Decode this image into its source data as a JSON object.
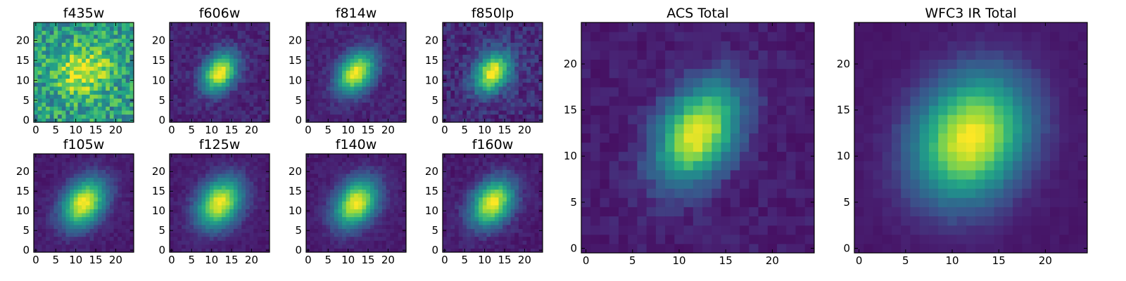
{
  "figure": {
    "background": "#ffffff"
  },
  "colormap": {
    "name": "viridis"
  },
  "chart_data": [
    {
      "type": "heatmap",
      "title": "f435w",
      "grid": [
        25,
        25
      ],
      "xlim": [
        0,
        24
      ],
      "ylim": [
        0,
        24
      ],
      "x_ticks": [
        0,
        5,
        10,
        15,
        20
      ],
      "y_ticks": [
        0,
        5,
        10,
        15,
        20
      ],
      "source": {
        "center": [
          12,
          12.5
        ],
        "peak_value": 1.0,
        "sigma": 4.5,
        "elongation_angle_deg": 30,
        "axis_ratio": 0.9,
        "background": 0.55,
        "noise": 0.22
      }
    },
    {
      "type": "heatmap",
      "title": "f606w",
      "grid": [
        25,
        25
      ],
      "xlim": [
        0,
        24
      ],
      "ylim": [
        0,
        24
      ],
      "x_ticks": [
        0,
        5,
        10,
        15,
        20
      ],
      "y_ticks": [
        0,
        5,
        10,
        15,
        20
      ],
      "source": {
        "center": [
          12,
          12
        ],
        "peak_value": 1.0,
        "sigma": 3.6,
        "elongation_angle_deg": 55,
        "axis_ratio": 0.72,
        "background": 0.12,
        "noise": 0.06
      }
    },
    {
      "type": "heatmap",
      "title": "f814w",
      "grid": [
        25,
        25
      ],
      "xlim": [
        0,
        24
      ],
      "ylim": [
        0,
        24
      ],
      "x_ticks": [
        0,
        5,
        10,
        15,
        20
      ],
      "y_ticks": [
        0,
        5,
        10,
        15,
        20
      ],
      "source": {
        "center": [
          12,
          12
        ],
        "peak_value": 1.0,
        "sigma": 3.9,
        "elongation_angle_deg": 55,
        "axis_ratio": 0.7,
        "background": 0.12,
        "noise": 0.05
      }
    },
    {
      "type": "heatmap",
      "title": "f850lp",
      "grid": [
        25,
        25
      ],
      "xlim": [
        0,
        24
      ],
      "ylim": [
        0,
        24
      ],
      "x_ticks": [
        0,
        5,
        10,
        15,
        20
      ],
      "y_ticks": [
        0,
        5,
        10,
        15,
        20
      ],
      "source": {
        "center": [
          12,
          12
        ],
        "peak_value": 1.0,
        "sigma": 3.8,
        "elongation_angle_deg": 55,
        "axis_ratio": 0.72,
        "background": 0.14,
        "noise": 0.09
      }
    },
    {
      "type": "heatmap",
      "title": "f105w",
      "grid": [
        25,
        25
      ],
      "xlim": [
        0,
        24
      ],
      "ylim": [
        0,
        24
      ],
      "x_ticks": [
        0,
        5,
        10,
        15,
        20
      ],
      "y_ticks": [
        0,
        5,
        10,
        15,
        20
      ],
      "source": {
        "center": [
          12,
          12
        ],
        "peak_value": 1.0,
        "sigma": 4.6,
        "elongation_angle_deg": 55,
        "axis_ratio": 0.72,
        "background": 0.1,
        "noise": 0.04
      }
    },
    {
      "type": "heatmap",
      "title": "f125w",
      "grid": [
        25,
        25
      ],
      "xlim": [
        0,
        24
      ],
      "ylim": [
        0,
        24
      ],
      "x_ticks": [
        0,
        5,
        10,
        15,
        20
      ],
      "y_ticks": [
        0,
        5,
        10,
        15,
        20
      ],
      "source": {
        "center": [
          12,
          12
        ],
        "peak_value": 1.0,
        "sigma": 4.6,
        "elongation_angle_deg": 55,
        "axis_ratio": 0.74,
        "background": 0.1,
        "noise": 0.04
      }
    },
    {
      "type": "heatmap",
      "title": "f140w",
      "grid": [
        25,
        25
      ],
      "xlim": [
        0,
        24
      ],
      "ylim": [
        0,
        24
      ],
      "x_ticks": [
        0,
        5,
        10,
        15,
        20
      ],
      "y_ticks": [
        0,
        5,
        10,
        15,
        20
      ],
      "source": {
        "center": [
          12,
          12
        ],
        "peak_value": 1.0,
        "sigma": 4.5,
        "elongation_angle_deg": 55,
        "axis_ratio": 0.72,
        "background": 0.1,
        "noise": 0.04
      }
    },
    {
      "type": "heatmap",
      "title": "f160w",
      "grid": [
        25,
        25
      ],
      "xlim": [
        0,
        24
      ],
      "ylim": [
        0,
        24
      ],
      "x_ticks": [
        0,
        5,
        10,
        15,
        20
      ],
      "y_ticks": [
        0,
        5,
        10,
        15,
        20
      ],
      "source": {
        "center": [
          12,
          12
        ],
        "peak_value": 1.0,
        "sigma": 4.4,
        "elongation_angle_deg": 55,
        "axis_ratio": 0.72,
        "background": 0.1,
        "noise": 0.05
      }
    },
    {
      "type": "heatmap",
      "title": "ACS Total",
      "grid": [
        25,
        25
      ],
      "xlim": [
        0,
        24
      ],
      "ylim": [
        0,
        24
      ],
      "x_ticks": [
        0,
        5,
        10,
        15,
        20
      ],
      "y_ticks": [
        0,
        5,
        10,
        15,
        20
      ],
      "source": {
        "center": [
          12,
          12.5
        ],
        "peak_value": 1.0,
        "sigma": 3.9,
        "elongation_angle_deg": 60,
        "axis_ratio": 0.66,
        "background": 0.1,
        "noise": 0.05
      }
    },
    {
      "type": "heatmap",
      "title": "WFC3 IR Total",
      "grid": [
        25,
        25
      ],
      "xlim": [
        0,
        24
      ],
      "ylim": [
        0,
        24
      ],
      "x_ticks": [
        0,
        5,
        10,
        15,
        20
      ],
      "y_ticks": [
        0,
        5,
        10,
        15,
        20
      ],
      "source": {
        "center": [
          12,
          12
        ],
        "peak_value": 1.0,
        "sigma": 4.9,
        "elongation_angle_deg": 60,
        "axis_ratio": 0.8,
        "background": 0.08,
        "noise": 0.02
      }
    }
  ]
}
